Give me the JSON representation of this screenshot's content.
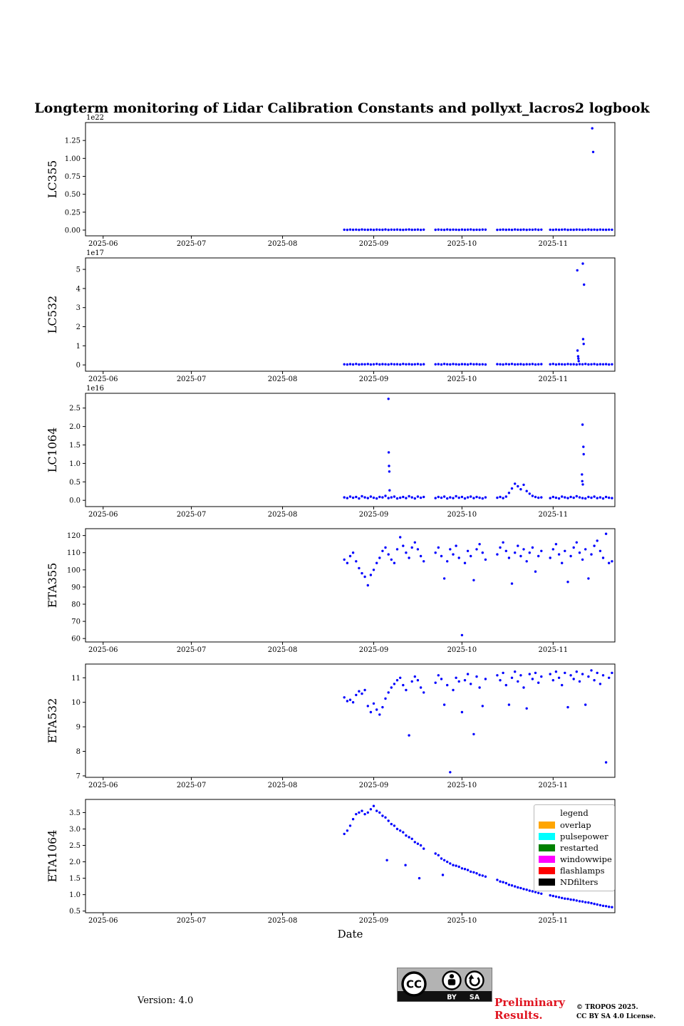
{
  "title": "Longterm monitoring of Lidar Calibration Constants and pollyxt_lacros2 logbook",
  "xlabel": "Date",
  "colors": {
    "marker": "#0000ff",
    "preliminary_text": "#e01420",
    "badge_background": "#b3b3b3",
    "axis": "#000000"
  },
  "legend": {
    "title": "legend",
    "entries": [
      {
        "label": "overlap",
        "color": "#FFA500"
      },
      {
        "label": "pulsepower",
        "color": "#00FFFF"
      },
      {
        "label": "restarted",
        "color": "#008000"
      },
      {
        "label": "windowwipe",
        "color": "#FF00FF"
      },
      {
        "label": "flashlamps",
        "color": "#FF0000"
      },
      {
        "label": "NDfilters",
        "color": "#000000"
      }
    ]
  },
  "footer": {
    "version": "Version: 4.0",
    "preliminary_line1": "Preliminary",
    "preliminary_line2": "Results.",
    "copyright_line1": "© TROPOS 2025.",
    "copyright_line2": "CC BY SA 4.0 License.",
    "cc_logo": "CC",
    "cc_by": "BY",
    "cc_sa": "SA"
  },
  "x_axis": {
    "encoding": "days since 2025-06-01",
    "lim_days": [
      -6,
      174
    ],
    "ticks_days": [
      0,
      30,
      61,
      92,
      122,
      153
    ],
    "tick_labels": [
      "2025-06",
      "2025-07",
      "2025-08",
      "2025-09",
      "2025-10",
      "2025-11"
    ]
  },
  "base_x_days": [
    82,
    83,
    84,
    85,
    86,
    87,
    88,
    89,
    90,
    91,
    92,
    93,
    94,
    95,
    96,
    97,
    98,
    99,
    100,
    101,
    102,
    103,
    104,
    105,
    106,
    107,
    108,
    109,
    113,
    114,
    115,
    116,
    117,
    118,
    119,
    120,
    121,
    122,
    123,
    124,
    125,
    126,
    127,
    128,
    129,
    130,
    134,
    135,
    136,
    137,
    138,
    139,
    140,
    141,
    142,
    143,
    144,
    145,
    146,
    147,
    148,
    149,
    152,
    153,
    154,
    155,
    156,
    157,
    158,
    159,
    160,
    161,
    162,
    163,
    164,
    165,
    166,
    167,
    168,
    169,
    170,
    171,
    172,
    173
  ],
  "chart_data": [
    {
      "type": "scatter",
      "ylabel": "LC355",
      "y_offset_label": "1e22",
      "ylim": [
        -0.08,
        1.5
      ],
      "yticks": [
        0,
        0.25,
        0.5,
        0.75,
        1.0,
        1.25
      ],
      "ytick_labels": [
        "0.00",
        "0.25",
        "0.50",
        "0.75",
        "1.00",
        "1.25"
      ],
      "y_base": [
        0.005,
        0.003,
        0.007,
        0.004,
        0.006,
        0.003,
        0.008,
        0.005,
        0.004,
        0.006,
        0.003,
        0.007,
        0.005,
        0.004,
        0.008,
        0.003,
        0.006,
        0.005,
        0.007,
        0.004,
        0.003,
        0.006,
        0.008,
        0.004,
        0.005,
        0.007,
        0.003,
        0.006,
        0.004,
        0.007,
        0.005,
        0.003,
        0.008,
        0.004,
        0.006,
        0.005,
        0.003,
        0.007,
        0.004,
        0.006,
        0.008,
        0.003,
        0.005,
        0.004,
        0.007,
        0.006,
        0.003,
        0.005,
        0.007,
        0.004,
        0.006,
        0.003,
        0.008,
        0.005,
        0.004,
        0.007,
        0.003,
        0.006,
        0.005,
        0.008,
        0.004,
        0.006,
        0.005,
        0.003,
        0.007,
        0.004,
        0.006,
        0.008,
        0.003,
        0.005,
        0.004,
        0.007,
        0.006,
        0.003,
        0.005,
        0.008,
        0.004,
        0.006,
        0.003,
        0.007,
        0.005,
        0.004,
        0.006,
        0.005
      ],
      "extra_points": {
        "x": [
          166.3,
          166.6
        ],
        "y": [
          1.42,
          1.09
        ]
      }
    },
    {
      "type": "scatter",
      "ylabel": "LC532",
      "y_offset_label": "1e17",
      "ylim": [
        -0.33,
        5.6
      ],
      "yticks": [
        0,
        1,
        2,
        3,
        4,
        5
      ],
      "ytick_labels": [
        "0",
        "1",
        "2",
        "3",
        "4",
        "5"
      ],
      "y_base": [
        0.03,
        0.02,
        0.04,
        0.025,
        0.05,
        0.02,
        0.035,
        0.03,
        0.045,
        0.02,
        0.03,
        0.05,
        0.025,
        0.04,
        0.03,
        0.02,
        0.045,
        0.03,
        0.035,
        0.02,
        0.05,
        0.03,
        0.04,
        0.025,
        0.03,
        0.045,
        0.02,
        0.035,
        0.03,
        0.04,
        0.02,
        0.05,
        0.03,
        0.025,
        0.045,
        0.03,
        0.02,
        0.04,
        0.035,
        0.02,
        0.05,
        0.03,
        0.04,
        0.025,
        0.03,
        0.02,
        0.04,
        0.03,
        0.02,
        0.045,
        0.03,
        0.05,
        0.025,
        0.03,
        0.04,
        0.02,
        0.035,
        0.03,
        0.045,
        0.02,
        0.03,
        0.04,
        0.03,
        0.05,
        0.02,
        0.04,
        0.03,
        0.025,
        0.045,
        0.03,
        0.035,
        0.02,
        0.04,
        0.03,
        0.05,
        0.025,
        0.03,
        0.045,
        0.02,
        0.035,
        0.03,
        0.04,
        0.02,
        0.03
      ],
      "extra_points": {
        "x": [
          161.2,
          161.3,
          161.5,
          161.6,
          161.7,
          163.1,
          163.2,
          163.4,
          163.5
        ],
        "y": [
          4.95,
          0.75,
          0.45,
          0.33,
          0.2,
          5.3,
          1.35,
          1.1,
          4.2
        ]
      }
    },
    {
      "type": "scatter",
      "ylabel": "LC1064",
      "y_offset_label": "1e16",
      "ylim": [
        -0.17,
        2.9
      ],
      "yticks": [
        0,
        0.5,
        1.0,
        1.5,
        2.0,
        2.5
      ],
      "ytick_labels": [
        "0.0",
        "0.5",
        "1.0",
        "1.5",
        "2.0",
        "2.5"
      ],
      "y_base": [
        0.08,
        0.06,
        0.1,
        0.07,
        0.09,
        0.05,
        0.11,
        0.08,
        0.06,
        0.1,
        0.07,
        0.05,
        0.09,
        0.08,
        0.12,
        0.06,
        0.08,
        0.1,
        0.05,
        0.07,
        0.09,
        0.06,
        0.11,
        0.08,
        0.05,
        0.1,
        0.07,
        0.09,
        0.06,
        0.09,
        0.07,
        0.1,
        0.05,
        0.08,
        0.06,
        0.11,
        0.07,
        0.09,
        0.05,
        0.08,
        0.1,
        0.06,
        0.09,
        0.07,
        0.05,
        0.08,
        0.07,
        0.09,
        0.06,
        0.1,
        0.2,
        0.32,
        0.45,
        0.38,
        0.3,
        0.42,
        0.25,
        0.18,
        0.12,
        0.09,
        0.07,
        0.08,
        0.06,
        0.09,
        0.07,
        0.05,
        0.1,
        0.08,
        0.06,
        0.09,
        0.07,
        0.11,
        0.08,
        0.06,
        0.05,
        0.09,
        0.07,
        0.1,
        0.06,
        0.08,
        0.05,
        0.09,
        0.07,
        0.06
      ],
      "extra_points": {
        "x": [
          97.0,
          97.1,
          97.2,
          97.3,
          97.4,
          162.8,
          162.9,
          163.0,
          163.1,
          163.3,
          163.4
        ],
        "y": [
          2.75,
          1.3,
          0.93,
          0.78,
          0.27,
          0.7,
          0.52,
          2.05,
          0.43,
          1.45,
          1.25
        ]
      }
    },
    {
      "type": "scatter",
      "ylabel": "ETA355",
      "y_offset_label": "",
      "ylim": [
        58,
        124
      ],
      "yticks": [
        60,
        70,
        80,
        90,
        100,
        110,
        120
      ],
      "ytick_labels": [
        "60",
        "70",
        "80",
        "90",
        "100",
        "110",
        "120"
      ],
      "y_base": [
        106,
        104,
        108,
        110,
        105,
        101,
        98,
        96,
        91,
        97,
        100,
        104,
        107,
        111,
        113,
        109,
        106,
        104,
        112,
        119,
        114,
        110,
        107,
        113,
        116,
        112,
        108,
        105,
        110,
        113,
        108,
        95,
        105,
        112,
        109,
        114,
        107,
        62,
        104,
        111,
        108,
        94,
        112,
        115,
        110,
        106,
        109,
        113,
        116,
        111,
        107,
        92,
        110,
        114,
        108,
        112,
        105,
        110,
        113,
        99,
        108,
        111,
        107,
        112,
        115,
        109,
        104,
        111,
        93,
        108,
        113,
        116,
        110,
        106,
        112,
        95,
        109,
        114,
        117,
        111,
        107,
        121,
        104,
        105
      ],
      "extra_points": {
        "x": [],
        "y": []
      }
    },
    {
      "type": "scatter",
      "ylabel": "ETA532",
      "y_offset_label": "",
      "ylim": [
        6.94,
        11.56
      ],
      "yticks": [
        7,
        8,
        9,
        10,
        11
      ],
      "ytick_labels": [
        "7",
        "8",
        "9",
        "10",
        "11"
      ],
      "y_base": [
        10.2,
        10.05,
        10.1,
        10.0,
        10.3,
        10.45,
        10.35,
        10.5,
        9.85,
        9.6,
        9.95,
        9.7,
        9.5,
        9.8,
        10.15,
        10.4,
        10.6,
        10.75,
        10.9,
        11.0,
        10.7,
        10.5,
        8.65,
        10.85,
        11.05,
        10.9,
        10.6,
        10.4,
        10.8,
        11.1,
        10.95,
        9.9,
        10.7,
        7.15,
        10.5,
        11.0,
        10.85,
        9.6,
        10.9,
        11.15,
        10.75,
        8.7,
        11.05,
        10.6,
        9.85,
        10.95,
        11.1,
        10.9,
        11.2,
        10.7,
        9.9,
        11.0,
        11.25,
        10.85,
        11.1,
        10.6,
        9.75,
        11.15,
        10.95,
        11.2,
        10.8,
        11.05,
        11.15,
        10.9,
        11.25,
        11.0,
        10.7,
        11.2,
        9.8,
        11.1,
        10.95,
        11.25,
        10.85,
        11.15,
        9.9,
        11.05,
        11.3,
        10.9,
        11.2,
        10.75,
        11.1,
        7.55,
        11.0,
        11.2
      ],
      "extra_points": {
        "x": [],
        "y": []
      }
    },
    {
      "type": "scatter",
      "ylabel": "ETA1064",
      "y_offset_label": "",
      "ylim": [
        0.45,
        3.9
      ],
      "yticks": [
        0.5,
        1.0,
        1.5,
        2.0,
        2.5,
        3.0,
        3.5
      ],
      "ytick_labels": [
        "0.5",
        "1.0",
        "1.5",
        "2.0",
        "2.5",
        "3.0",
        "3.5"
      ],
      "y_base": [
        2.85,
        2.95,
        3.1,
        3.3,
        3.45,
        3.5,
        3.55,
        3.45,
        3.5,
        3.6,
        3.7,
        3.55,
        3.5,
        3.4,
        3.35,
        3.25,
        3.15,
        3.1,
        3.0,
        2.95,
        2.9,
        2.8,
        2.75,
        2.7,
        2.6,
        2.55,
        2.5,
        2.4,
        2.25,
        2.2,
        2.1,
        2.05,
        2.0,
        1.95,
        1.9,
        1.88,
        1.85,
        1.8,
        1.78,
        1.75,
        1.7,
        1.68,
        1.65,
        1.6,
        1.58,
        1.55,
        1.45,
        1.4,
        1.38,
        1.35,
        1.3,
        1.28,
        1.25,
        1.22,
        1.2,
        1.17,
        1.15,
        1.12,
        1.1,
        1.08,
        1.05,
        1.03,
        0.98,
        0.96,
        0.94,
        0.92,
        0.9,
        0.88,
        0.87,
        0.85,
        0.84,
        0.82,
        0.8,
        0.79,
        0.77,
        0.76,
        0.74,
        0.72,
        0.7,
        0.68,
        0.66,
        0.65,
        0.63,
        0.62
      ],
      "extra_points": {
        "x": [
          96.5,
          102.8,
          107.5,
          115.5
        ],
        "y": [
          2.05,
          1.9,
          1.5,
          1.6
        ]
      }
    }
  ]
}
